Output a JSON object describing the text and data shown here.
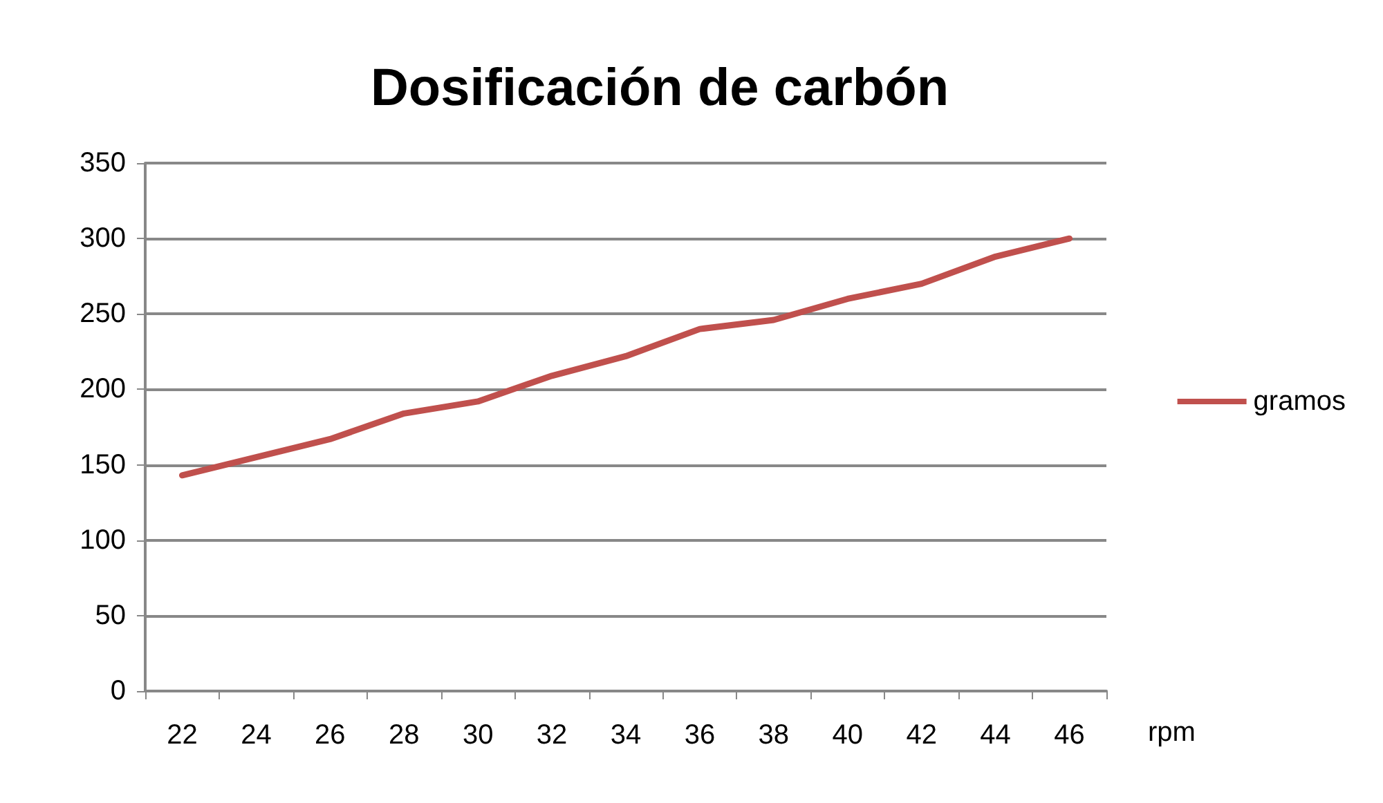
{
  "chart_data": {
    "type": "line",
    "title": "Dosificación de carbón",
    "xlabel": "rpm",
    "categories": [
      "22",
      "24",
      "26",
      "28",
      "30",
      "32",
      "34",
      "36",
      "38",
      "40",
      "42",
      "44",
      "46"
    ],
    "series": [
      {
        "name": "gramos",
        "color": "#c0504d",
        "values": [
          143,
          155,
          167,
          184,
          192,
          209,
          222,
          240,
          246,
          260,
          270,
          288,
          300
        ]
      }
    ],
    "ylim": [
      0,
      350
    ],
    "yticks": [
      0,
      50,
      100,
      150,
      200,
      250,
      300,
      350
    ],
    "grid": "y",
    "legend": "right",
    "marker": "none"
  }
}
